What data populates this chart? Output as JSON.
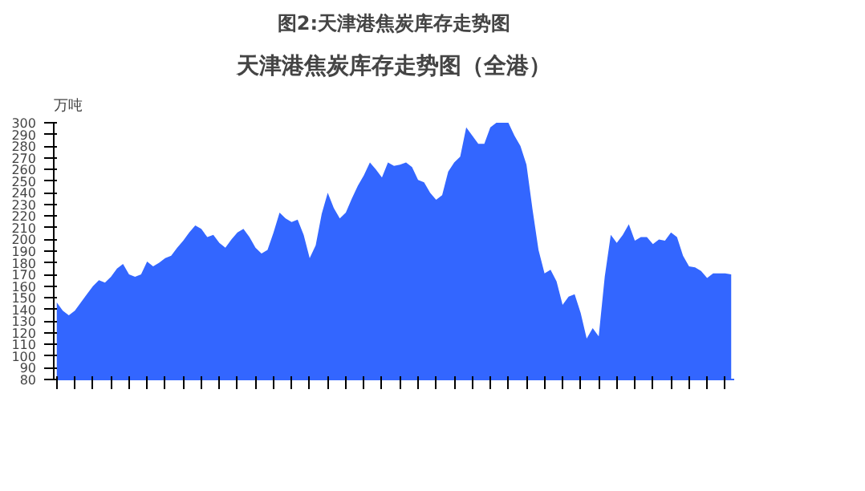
{
  "chart_data": {
    "type": "area",
    "title": "图2:天津港焦炭库存走势图",
    "subtitle": "天津港焦炭库存走势图（全港）",
    "ylabel": "万吨",
    "color": "#3366ff",
    "categories": [
      null,
      null,
      null,
      null,
      null,
      null,
      null,
      null,
      null,
      null,
      null,
      null,
      null,
      null,
      null,
      null,
      null,
      null,
      null,
      null,
      null,
      null,
      null,
      null,
      null,
      null,
      null,
      null,
      null,
      null,
      null,
      null,
      null,
      null,
      null,
      null,
      null,
      null,
      null,
      null,
      null,
      null,
      null,
      null,
      null,
      null,
      null,
      null,
      null,
      null,
      null,
      null,
      null,
      null,
      null,
      null,
      null,
      null,
      null,
      null,
      null,
      null,
      null,
      null,
      null,
      null,
      null,
      null,
      null,
      null,
      null,
      null,
      null,
      null,
      null,
      null,
      null,
      null,
      null,
      null,
      null,
      null,
      null,
      null,
      null,
      null,
      null,
      null,
      null,
      null,
      null,
      null,
      null,
      null,
      null,
      null,
      null,
      null,
      null,
      null,
      null,
      null,
      null,
      null,
      null,
      null,
      null,
      null,
      null,
      null,
      null,
      null,
      null
    ],
    "values": [
      146,
      139,
      135,
      139,
      146,
      153,
      160,
      165,
      163,
      168,
      175,
      179,
      170,
      168,
      170,
      181,
      177,
      180,
      184,
      186,
      193,
      199,
      206,
      212,
      209,
      202,
      204,
      197,
      193,
      200,
      206,
      209,
      202,
      193,
      188,
      191,
      206,
      223,
      218,
      215,
      217,
      204,
      184,
      195,
      222,
      240,
      227,
      218,
      223,
      235,
      246,
      255,
      266,
      260,
      253,
      266,
      263,
      264,
      266,
      262,
      251,
      249,
      240,
      234,
      238,
      258,
      266,
      271,
      296,
      289,
      282,
      282,
      296,
      300,
      300,
      300,
      289,
      280,
      264,
      226,
      191,
      171,
      174,
      164,
      144,
      151,
      153,
      137,
      115,
      124,
      117,
      168,
      204,
      197,
      204,
      213,
      199,
      202,
      202,
      196,
      200,
      199,
      206,
      202,
      186,
      177,
      176,
      173,
      167,
      171,
      171,
      171,
      170
    ],
    "ylim": [
      80,
      300
    ],
    "yticks": [
      80,
      90,
      100,
      110,
      120,
      130,
      140,
      150,
      160,
      170,
      180,
      190,
      200,
      210,
      220,
      230,
      240,
      250,
      260,
      270,
      280,
      290,
      300
    ],
    "grid": false
  }
}
